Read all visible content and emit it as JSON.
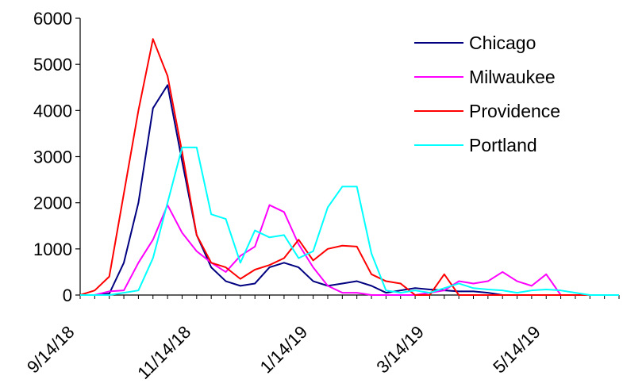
{
  "chart_data": {
    "type": "line",
    "title": "",
    "xlabel": "",
    "ylabel": "",
    "ylim": [
      0,
      6000
    ],
    "yticks": [
      0,
      1000,
      2000,
      3000,
      4000,
      5000,
      6000
    ],
    "x_tick_labels": [
      "9/14/18",
      "11/14/18",
      "1/14/19",
      "3/14/19",
      "5/14/19"
    ],
    "x_tick_indices": [
      0,
      8,
      16,
      24,
      32
    ],
    "grid": false,
    "legend_position": "top-right",
    "series": [
      {
        "name": "Chicago",
        "color": "#000080",
        "values": [
          0,
          0,
          30,
          700,
          2000,
          4050,
          4550,
          2900,
          1300,
          600,
          300,
          200,
          250,
          600,
          700,
          600,
          300,
          200,
          250,
          300,
          200,
          50,
          100,
          150,
          120,
          100,
          80,
          80,
          50,
          0,
          0,
          0,
          0,
          0,
          0,
          0,
          0,
          0
        ]
      },
      {
        "name": "Milwaukee",
        "color": "#FF00FF",
        "values": [
          0,
          0,
          80,
          100,
          700,
          1200,
          1950,
          1350,
          950,
          700,
          500,
          850,
          1050,
          1950,
          1800,
          1100,
          600,
          200,
          50,
          50,
          0,
          0,
          0,
          0,
          50,
          100,
          300,
          250,
          300,
          500,
          300,
          200,
          450,
          0,
          0,
          0,
          0,
          0
        ]
      },
      {
        "name": "Providence",
        "color": "#FF0000",
        "values": [
          0,
          100,
          400,
          2200,
          4000,
          5550,
          4750,
          3100,
          1300,
          700,
          600,
          350,
          550,
          650,
          800,
          1200,
          750,
          1000,
          1070,
          1050,
          450,
          300,
          250,
          0,
          0,
          450,
          0,
          0,
          0,
          0,
          0,
          0,
          0,
          0,
          0,
          0,
          0,
          0
        ]
      },
      {
        "name": "Portland",
        "color": "#00FFFF",
        "values": [
          0,
          0,
          0,
          50,
          100,
          800,
          2000,
          3200,
          3200,
          1750,
          1650,
          700,
          1400,
          1250,
          1300,
          800,
          950,
          1900,
          2350,
          2350,
          900,
          100,
          50,
          100,
          50,
          150,
          250,
          150,
          120,
          100,
          50,
          100,
          120,
          100,
          50,
          0,
          0,
          0
        ]
      }
    ]
  }
}
